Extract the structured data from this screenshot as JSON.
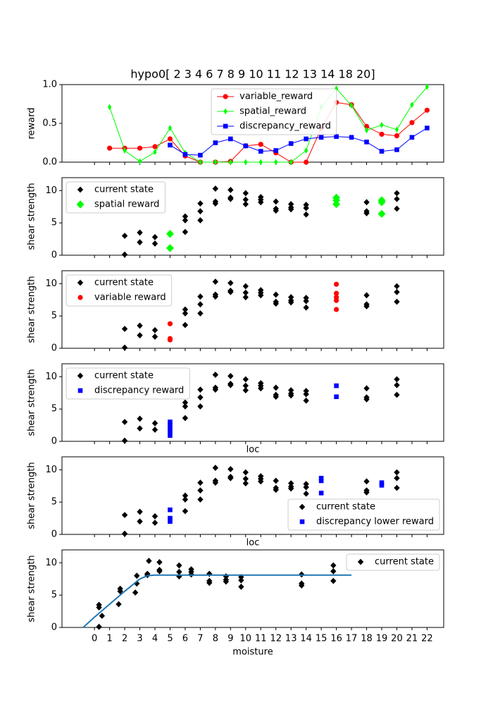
{
  "chart_data": [
    {
      "type": "line",
      "title": "hypo0[ 2  3  4  6  7  8  9 10 11 12 13 14 18 20]",
      "ylabel": "reward",
      "xlim": [
        -2.15,
        23.1
      ],
      "ylim": [
        0,
        1
      ],
      "yticks": [
        {
          "value": 0,
          "label": "0.0"
        },
        {
          "value": 0.5,
          "label": "0.5"
        },
        {
          "value": 1,
          "label": "1.0"
        }
      ],
      "legend": "upper center",
      "x": [
        1,
        2,
        3,
        4,
        5,
        6,
        7,
        8,
        9,
        10,
        11,
        12,
        13,
        14,
        15,
        16,
        17,
        18,
        19,
        20,
        21,
        22
      ],
      "series": [
        {
          "name": "variable_reward",
          "color": "#ff0000",
          "marker": "o",
          "line": true,
          "values": [
            0.18,
            0.18,
            0.18,
            0.2,
            0.3,
            0.08,
            0,
            0,
            0.01,
            0.21,
            0.23,
            0.12,
            0,
            0,
            0.44,
            0.77,
            0.74,
            0.46,
            0.36,
            0.34,
            0.51,
            0.67
          ]
        },
        {
          "name": "spatial_reward",
          "color": "#00ff00",
          "marker": "d",
          "line": true,
          "values": [
            0.71,
            0.15,
            0.01,
            0.13,
            0.44,
            0.12,
            0,
            0,
            0,
            0,
            0,
            0,
            0,
            0.15,
            0.71,
            0.95,
            0.73,
            0.41,
            0.48,
            0.42,
            0.74,
            0.97
          ]
        },
        {
          "name": "discrepancy_reward",
          "color": "#0000ff",
          "marker": "s",
          "line": true,
          "values": [
            null,
            null,
            null,
            null,
            0.22,
            0.1,
            0.09,
            0.25,
            0.3,
            0.21,
            0.14,
            0.15,
            0.24,
            0.3,
            0.32,
            0.33,
            0.32,
            0.26,
            0.14,
            0.16,
            0.32,
            0.44
          ]
        }
      ]
    },
    {
      "type": "scatter",
      "ylabel": "shear strength",
      "xlim": [
        -2.15,
        23.1
      ],
      "ylim": [
        0,
        12
      ],
      "yticks": [
        0,
        5,
        10
      ],
      "legend": "upper left",
      "series": [
        {
          "name": "current state",
          "color": "#000000",
          "marker": "D",
          "x": [
            2,
            2,
            3,
            3,
            4,
            4,
            6,
            6,
            6,
            7,
            7,
            7,
            8,
            8,
            8,
            9,
            9,
            9,
            10,
            10,
            10,
            11,
            11,
            11,
            12,
            12,
            12,
            13,
            13,
            13,
            14,
            14,
            14,
            18,
            18,
            18,
            20,
            20,
            20
          ],
          "values": [
            3.0,
            0.1,
            3.5,
            2.0,
            2.8,
            1.8,
            6.0,
            5.4,
            3.6,
            8.0,
            6.8,
            5.4,
            10.3,
            8.3,
            8.0,
            10.1,
            8.9,
            8.7,
            9.6,
            8.6,
            7.9,
            9.0,
            8.6,
            8.2,
            8.3,
            7.2,
            6.9,
            7.9,
            7.4,
            7.1,
            7.8,
            7.3,
            6.3,
            8.2,
            6.8,
            6.5,
            9.6,
            8.7,
            7.2
          ]
        },
        {
          "name": "spatial reward",
          "color": "#00ff00",
          "marker": "D",
          "size": 1.3,
          "x": [
            5,
            5,
            16,
            16,
            16,
            19,
            19,
            19
          ],
          "values": [
            3.3,
            1.1,
            8.9,
            8.5,
            7.9,
            8.5,
            8.2,
            6.4
          ]
        }
      ]
    },
    {
      "type": "scatter",
      "ylabel": "shear strength",
      "xlim": [
        -2.15,
        23.1
      ],
      "ylim": [
        0,
        12
      ],
      "yticks": [
        0,
        5,
        10
      ],
      "legend": "upper left",
      "series": [
        {
          "name": "current state",
          "color": "#000000",
          "marker": "D",
          "x": [
            2,
            2,
            3,
            3,
            4,
            4,
            6,
            6,
            6,
            7,
            7,
            7,
            8,
            8,
            8,
            9,
            9,
            9,
            10,
            10,
            10,
            11,
            11,
            11,
            12,
            12,
            12,
            13,
            13,
            13,
            14,
            14,
            14,
            18,
            18,
            18,
            20,
            20,
            20
          ],
          "values": [
            3.0,
            0.1,
            3.5,
            2.0,
            2.8,
            1.8,
            6.0,
            5.4,
            3.6,
            8.0,
            6.8,
            5.4,
            10.3,
            8.3,
            8.0,
            10.1,
            8.9,
            8.7,
            9.6,
            8.6,
            7.9,
            9.0,
            8.6,
            8.2,
            8.3,
            7.2,
            6.9,
            7.9,
            7.4,
            7.1,
            7.8,
            7.3,
            6.3,
            8.2,
            6.8,
            6.5,
            9.6,
            8.7,
            7.2
          ]
        },
        {
          "name": "variable reward",
          "color": "#ff0000",
          "marker": "o",
          "x": [
            5,
            5,
            5,
            16,
            16,
            16,
            16,
            16
          ],
          "values": [
            3.8,
            1.5,
            1.3,
            9.9,
            8.5,
            7.9,
            7.4,
            6.0
          ]
        }
      ]
    },
    {
      "type": "scatter",
      "ylabel": "shear strength",
      "xlabel": "loc",
      "xlim": [
        -2.15,
        23.1
      ],
      "ylim": [
        0,
        12
      ],
      "yticks": [
        0,
        5,
        10
      ],
      "legend": "upper left",
      "series": [
        {
          "name": "current state",
          "color": "#000000",
          "marker": "D",
          "x": [
            2,
            2,
            3,
            3,
            4,
            4,
            6,
            6,
            6,
            7,
            7,
            7,
            8,
            8,
            8,
            9,
            9,
            9,
            10,
            10,
            10,
            11,
            11,
            11,
            12,
            12,
            12,
            13,
            13,
            13,
            14,
            14,
            14,
            18,
            18,
            18,
            20,
            20,
            20
          ],
          "values": [
            3.0,
            0.1,
            3.5,
            2.0,
            2.8,
            1.8,
            6.0,
            5.4,
            3.6,
            8.0,
            6.8,
            5.4,
            10.3,
            8.3,
            8.0,
            10.1,
            8.9,
            8.7,
            9.6,
            8.6,
            7.9,
            9.0,
            8.6,
            8.2,
            8.3,
            7.2,
            6.9,
            7.9,
            7.4,
            7.1,
            7.8,
            7.3,
            6.3,
            8.2,
            6.8,
            6.5,
            9.6,
            8.7,
            7.2
          ]
        },
        {
          "name": "discrepancy reward",
          "color": "#0000ff",
          "marker": "s",
          "x": [
            5,
            5,
            5,
            5,
            5,
            16,
            16
          ],
          "values": [
            3.0,
            2.5,
            2.0,
            1.5,
            0.9,
            8.6,
            6.9
          ]
        }
      ]
    },
    {
      "type": "scatter",
      "ylabel": "shear strength",
      "xlabel": "loc",
      "xlim": [
        -2.15,
        23.1
      ],
      "ylim": [
        0,
        12
      ],
      "yticks": [
        0,
        5,
        10
      ],
      "legend": "lower right",
      "series": [
        {
          "name": "current state",
          "color": "#000000",
          "marker": "D",
          "x": [
            2,
            2,
            3,
            3,
            4,
            4,
            6,
            6,
            6,
            7,
            7,
            7,
            8,
            8,
            8,
            9,
            9,
            9,
            10,
            10,
            10,
            11,
            11,
            11,
            12,
            12,
            12,
            13,
            13,
            13,
            14,
            14,
            14,
            18,
            18,
            18,
            20,
            20,
            20
          ],
          "values": [
            3.0,
            0.1,
            3.5,
            2.0,
            2.8,
            1.8,
            6.0,
            5.4,
            3.6,
            8.0,
            6.8,
            5.4,
            10.3,
            8.3,
            8.0,
            10.1,
            8.9,
            8.7,
            9.6,
            8.6,
            7.9,
            9.0,
            8.6,
            8.2,
            8.3,
            7.2,
            6.9,
            7.9,
            7.4,
            7.1,
            7.8,
            7.3,
            6.3,
            8.2,
            6.8,
            6.5,
            9.6,
            8.7,
            7.2
          ]
        },
        {
          "name": "discrepancy lower reward",
          "color": "#0000ff",
          "marker": "s",
          "x": [
            5,
            5,
            5,
            15,
            15,
            15,
            19,
            19
          ],
          "values": [
            3.8,
            2.5,
            2.0,
            8.7,
            8.3,
            6.4,
            8.0,
            7.6
          ]
        }
      ]
    },
    {
      "type": "scatter",
      "ylabel": "shear strength",
      "xlabel": "moisture",
      "xlim": [
        -2.15,
        23.1
      ],
      "ylim": [
        0,
        12
      ],
      "yticks": [
        0,
        5,
        10
      ],
      "xticks": [
        0,
        1,
        2,
        3,
        4,
        5,
        6,
        7,
        8,
        9,
        10,
        11,
        12,
        13,
        14,
        15,
        16,
        17,
        18,
        19,
        20,
        21,
        22
      ],
      "legend": "upper right",
      "series": [
        {
          "name": "current state",
          "color": "#000000",
          "marker": "D",
          "x": [
            0.3,
            0.3,
            0.3,
            0.5,
            1.6,
            1.7,
            1.7,
            2.7,
            2.8,
            2.8,
            3.5,
            3.5,
            3.6,
            4.3,
            4.3,
            4.3,
            5.6,
            5.6,
            5.6,
            6.4,
            6.4,
            6.4,
            7.6,
            7.6,
            7.6,
            8.7,
            8.7,
            8.7,
            9.7,
            9.7,
            9.7,
            13.7,
            13.7,
            13.7,
            15.8,
            15.8,
            15.8
          ],
          "values": [
            3.5,
            3.1,
            0.1,
            1.8,
            3.6,
            5.6,
            6.0,
            5.4,
            6.8,
            8.0,
            8.1,
            8.3,
            10.3,
            10.1,
            8.9,
            8.7,
            9.6,
            8.6,
            7.9,
            9.0,
            8.6,
            8.2,
            8.3,
            7.2,
            6.9,
            7.9,
            7.4,
            7.1,
            7.8,
            7.3,
            6.3,
            8.2,
            6.8,
            6.5,
            9.6,
            8.7,
            7.2
          ]
        },
        {
          "color": "#1f77b4",
          "line": true,
          "x": [
            -0.75,
            0,
            1,
            2,
            3,
            3.5,
            4,
            17
          ],
          "values": [
            0,
            1.6,
            3.6,
            5.6,
            7.5,
            8.0,
            8.1,
            8.1
          ]
        }
      ]
    }
  ]
}
